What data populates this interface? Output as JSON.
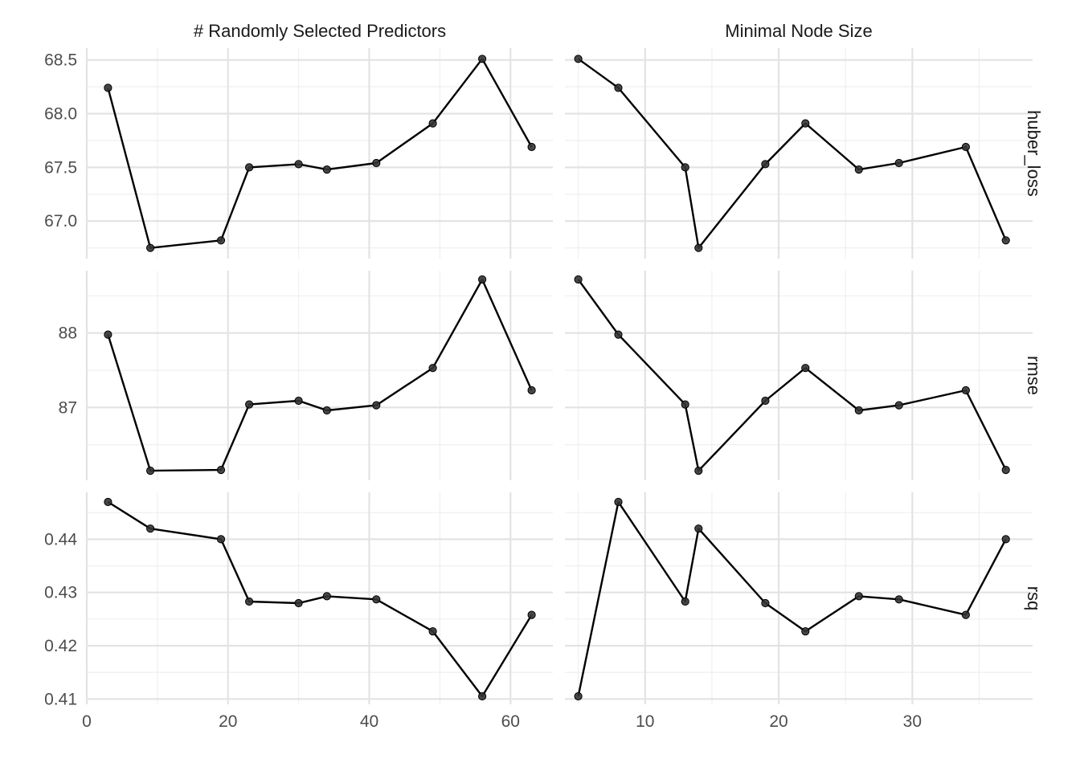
{
  "chart_data": {
    "type": "line",
    "layout": "facet_grid",
    "grid": true,
    "legend": "none",
    "colors": {
      "line": "#000000",
      "point": "#333333",
      "grid_major": "#e3e3e3",
      "grid_minor": "#eeeeee"
    },
    "columns": [
      {
        "name": "# Randomly Selected Predictors",
        "xlim": [
          0,
          66
        ],
        "xticks": [
          0,
          20,
          40,
          60
        ],
        "x": [
          3,
          9,
          19,
          23,
          30,
          34,
          41,
          49,
          56,
          63
        ]
      },
      {
        "name": "Minimal Node Size",
        "xlim": [
          4,
          39
        ],
        "xticks": [
          10,
          20,
          30
        ],
        "x": [
          5,
          8,
          13,
          14,
          19,
          22,
          26,
          29,
          34,
          37
        ]
      }
    ],
    "rows": [
      {
        "name": "huber_loss",
        "ylim": [
          66.74,
          68.52
        ],
        "yticks": [
          "67.0",
          "67.5",
          "68.0",
          "68.5"
        ],
        "series": [
          [
            68.24,
            66.75,
            66.82,
            67.5,
            67.53,
            67.48,
            67.54,
            67.91,
            68.51,
            67.69
          ],
          [
            68.51,
            68.24,
            67.5,
            66.75,
            67.53,
            67.91,
            67.48,
            67.54,
            67.69,
            66.82
          ]
        ]
      },
      {
        "name": "rmse",
        "ylim": [
          86.14,
          88.72
        ],
        "yticks": [
          "87",
          "88"
        ],
        "series": [
          [
            87.98,
            86.15,
            86.16,
            87.04,
            87.09,
            86.96,
            87.03,
            87.53,
            88.72,
            87.23
          ],
          [
            88.72,
            87.98,
            87.04,
            86.15,
            87.09,
            87.53,
            86.96,
            87.03,
            87.23,
            86.16
          ]
        ]
      },
      {
        "name": "rsq",
        "ylim": [
          0.4105,
          0.447
        ],
        "yticks": [
          "0.41",
          "0.42",
          "0.43",
          "0.44"
        ],
        "series": [
          [
            0.447,
            0.442,
            0.44,
            0.4283,
            0.428,
            0.4293,
            0.4287,
            0.4227,
            0.4105,
            0.4258
          ],
          [
            0.4105,
            0.447,
            0.4283,
            0.442,
            0.428,
            0.4227,
            0.4293,
            0.4287,
            0.4258,
            0.44
          ]
        ]
      }
    ]
  }
}
